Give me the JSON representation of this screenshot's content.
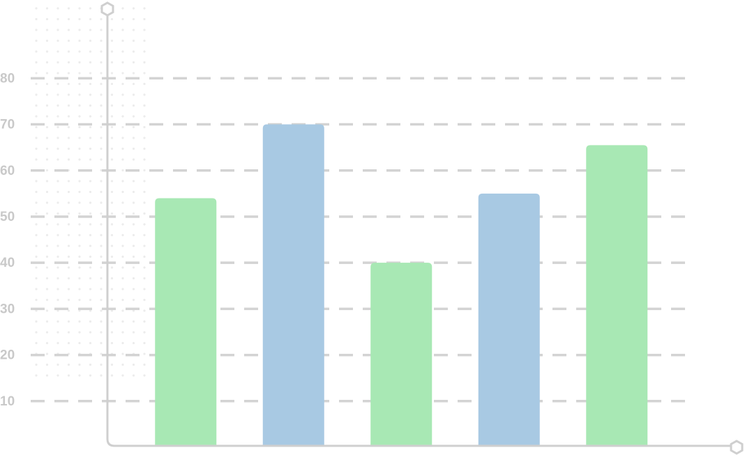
{
  "chart_data": {
    "type": "bar",
    "categories": [
      null,
      null,
      null,
      null,
      null
    ],
    "values": [
      54,
      70,
      40,
      55,
      65.5
    ],
    "colors": [
      "#a8e8b4",
      "#a8c9e3",
      "#a8e8b4",
      "#a8c9e3",
      "#a8e8b4"
    ],
    "ylim": [
      0,
      95
    ],
    "yticks": [
      10,
      20,
      30,
      40,
      50,
      60,
      70,
      80
    ],
    "grid": true
  }
}
